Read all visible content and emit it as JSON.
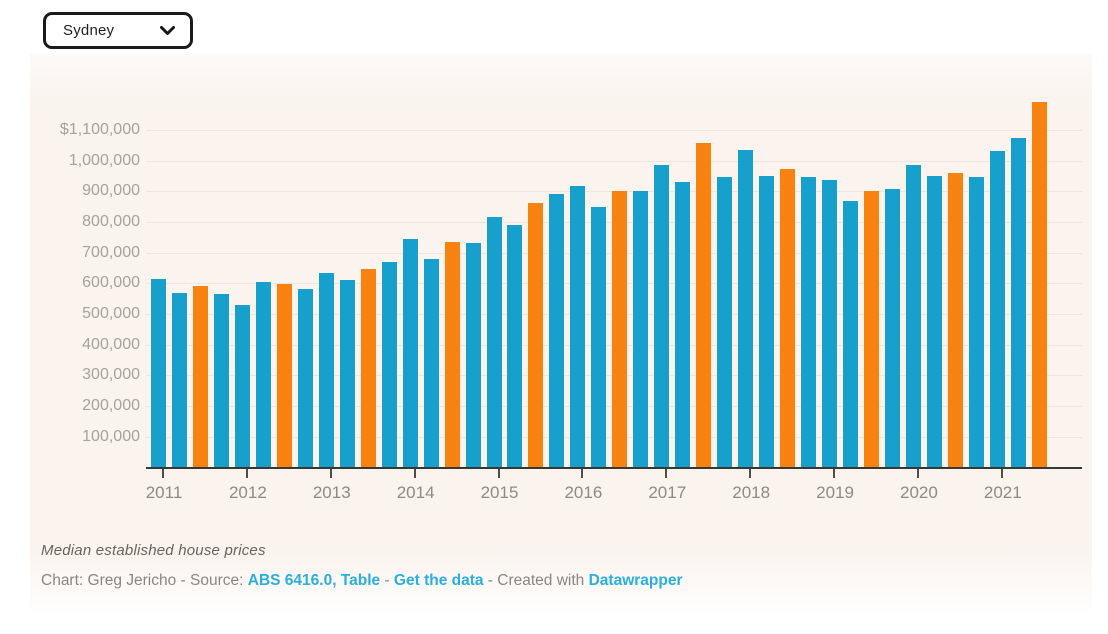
{
  "region_selector": {
    "value": "Sydney"
  },
  "chart_data": {
    "type": "bar",
    "title": "Median established house prices",
    "region": "Sydney",
    "unit": "AUD",
    "x_axis": {
      "tick_labels": [
        "2011",
        "2012",
        "2013",
        "2014",
        "2015",
        "2016",
        "2017",
        "2018",
        "2019",
        "2020",
        "2021"
      ]
    },
    "y_axis": {
      "tick_labels": [
        "$1,100,000",
        "1,000,000",
        "900,000",
        "800,000",
        "700,000",
        "600,000",
        "500,000",
        "400,000",
        "300,000",
        "200,000",
        "100,000"
      ],
      "min": 0,
      "max": 1200000,
      "gridline_interval": 100000,
      "grid": true
    },
    "legend": "none",
    "colors": {
      "default": "#18a0cc",
      "highlight": "#f8820f"
    },
    "highlight_rule": "third quarter of each year shown in orange",
    "points": [
      {
        "label": "2011 Q1",
        "value": 615000,
        "highlight": false
      },
      {
        "label": "2011 Q2",
        "value": 570000,
        "highlight": false
      },
      {
        "label": "2011 Q3",
        "value": 590000,
        "highlight": true
      },
      {
        "label": "2011 Q4",
        "value": 565000,
        "highlight": false
      },
      {
        "label": "2012 Q1",
        "value": 530000,
        "highlight": false
      },
      {
        "label": "2012 Q2",
        "value": 605000,
        "highlight": false
      },
      {
        "label": "2012 Q3",
        "value": 598000,
        "highlight": true
      },
      {
        "label": "2012 Q4",
        "value": 580000,
        "highlight": false
      },
      {
        "label": "2013 Q1",
        "value": 635000,
        "highlight": false
      },
      {
        "label": "2013 Q2",
        "value": 610000,
        "highlight": false
      },
      {
        "label": "2013 Q3",
        "value": 645000,
        "highlight": true
      },
      {
        "label": "2013 Q4",
        "value": 668000,
        "highlight": false
      },
      {
        "label": "2014 Q1",
        "value": 745000,
        "highlight": false
      },
      {
        "label": "2014 Q2",
        "value": 680000,
        "highlight": false
      },
      {
        "label": "2014 Q3",
        "value": 733000,
        "highlight": true
      },
      {
        "label": "2014 Q4",
        "value": 732000,
        "highlight": false
      },
      {
        "label": "2015 Q1",
        "value": 815000,
        "highlight": false
      },
      {
        "label": "2015 Q2",
        "value": 790000,
        "highlight": false
      },
      {
        "label": "2015 Q3",
        "value": 860000,
        "highlight": true
      },
      {
        "label": "2015 Q4",
        "value": 892000,
        "highlight": false
      },
      {
        "label": "2016 Q1",
        "value": 917000,
        "highlight": false
      },
      {
        "label": "2016 Q2",
        "value": 848000,
        "highlight": false
      },
      {
        "label": "2016 Q3",
        "value": 900000,
        "highlight": true
      },
      {
        "label": "2016 Q4",
        "value": 900000,
        "highlight": false
      },
      {
        "label": "2017 Q1",
        "value": 985000,
        "highlight": false
      },
      {
        "label": "2017 Q2",
        "value": 930000,
        "highlight": false
      },
      {
        "label": "2017 Q3",
        "value": 1057000,
        "highlight": true
      },
      {
        "label": "2017 Q4",
        "value": 946000,
        "highlight": false
      },
      {
        "label": "2018 Q1",
        "value": 1034000,
        "highlight": false
      },
      {
        "label": "2018 Q2",
        "value": 951000,
        "highlight": false
      },
      {
        "label": "2018 Q3",
        "value": 972000,
        "highlight": true
      },
      {
        "label": "2018 Q4",
        "value": 946000,
        "highlight": false
      },
      {
        "label": "2019 Q1",
        "value": 938000,
        "highlight": false
      },
      {
        "label": "2019 Q2",
        "value": 868000,
        "highlight": false
      },
      {
        "label": "2019 Q3",
        "value": 900000,
        "highlight": true
      },
      {
        "label": "2019 Q4",
        "value": 906000,
        "highlight": false
      },
      {
        "label": "2020 Q1",
        "value": 986000,
        "highlight": false
      },
      {
        "label": "2020 Q2",
        "value": 948000,
        "highlight": false
      },
      {
        "label": "2020 Q3",
        "value": 960000,
        "highlight": true
      },
      {
        "label": "2020 Q4",
        "value": 946000,
        "highlight": false
      },
      {
        "label": "2021 Q1",
        "value": 1031000,
        "highlight": false
      },
      {
        "label": "2021 Q2",
        "value": 1072000,
        "highlight": false
      },
      {
        "label": "2021 Q3",
        "value": 1192000,
        "highlight": true
      }
    ]
  },
  "footer": {
    "byline": [
      {
        "text": "Chart: Greg Jericho - Source: ",
        "link": false
      },
      {
        "text": "ABS 6416.0, Table",
        "link": true
      },
      {
        "text": " - ",
        "link": false
      },
      {
        "text": "Get the data",
        "link": true
      },
      {
        "text": " - Created with ",
        "link": false
      },
      {
        "text": "Datawrapper",
        "link": true
      }
    ]
  }
}
